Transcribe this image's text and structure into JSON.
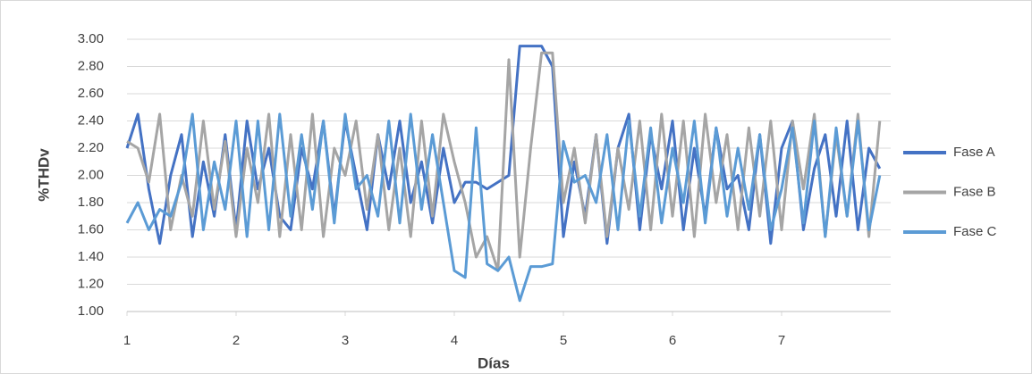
{
  "chart_data": {
    "type": "line",
    "x_label": "Días",
    "y_label": "%THDv",
    "x": [
      1.0,
      1.1,
      1.2,
      1.3,
      1.4,
      1.5,
      1.6,
      1.7,
      1.8,
      1.9,
      2.0,
      2.1,
      2.2,
      2.3,
      2.4,
      2.5,
      2.6,
      2.7,
      2.8,
      2.9,
      3.0,
      3.1,
      3.2,
      3.3,
      3.4,
      3.5,
      3.6,
      3.7,
      3.8,
      3.9,
      4.0,
      4.1,
      4.2,
      4.3,
      4.4,
      4.5,
      4.6,
      4.7,
      4.8,
      4.9,
      5.0,
      5.1,
      5.2,
      5.3,
      5.4,
      5.5,
      5.6,
      5.7,
      5.8,
      5.9,
      6.0,
      6.1,
      6.2,
      6.3,
      6.4,
      6.5,
      6.6,
      6.7,
      6.8,
      6.9,
      7.0,
      7.1,
      7.2,
      7.3,
      7.4,
      7.5,
      7.6,
      7.7,
      7.8,
      7.9
    ],
    "series": [
      {
        "name": "Fase A",
        "color": "#4472c4",
        "values": [
          2.2,
          2.45,
          1.9,
          1.5,
          2.0,
          2.3,
          1.55,
          2.1,
          1.7,
          2.3,
          1.6,
          2.4,
          1.9,
          2.2,
          1.7,
          1.6,
          2.2,
          1.9,
          2.4,
          1.7,
          2.4,
          2.0,
          1.6,
          2.3,
          1.9,
          2.4,
          1.8,
          2.1,
          1.65,
          2.2,
          1.8,
          1.95,
          1.95,
          1.9,
          1.95,
          2.0,
          2.95,
          2.95,
          2.95,
          2.8,
          1.55,
          2.1,
          1.7,
          2.3,
          1.5,
          2.2,
          2.45,
          1.6,
          2.3,
          1.9,
          2.4,
          1.6,
          2.2,
          1.7,
          2.35,
          1.9,
          2.0,
          1.6,
          2.3,
          1.5,
          2.2,
          2.4,
          1.6,
          2.05,
          2.3,
          1.7,
          2.4,
          1.6,
          2.2,
          2.05
        ]
      },
      {
        "name": "Fase B",
        "color": "#a5a5a5",
        "values": [
          2.25,
          2.2,
          1.95,
          2.45,
          1.6,
          2.0,
          1.7,
          2.4,
          1.75,
          2.25,
          1.55,
          2.2,
          1.8,
          2.45,
          1.55,
          2.3,
          1.6,
          2.45,
          1.55,
          2.2,
          2.0,
          2.4,
          1.75,
          2.3,
          1.6,
          2.2,
          1.55,
          2.4,
          1.7,
          2.45,
          2.1,
          1.8,
          1.4,
          1.55,
          1.3,
          2.85,
          1.4,
          2.2,
          2.9,
          2.9,
          1.8,
          2.2,
          1.65,
          2.3,
          1.55,
          2.2,
          1.75,
          2.4,
          1.6,
          2.45,
          1.7,
          2.4,
          1.55,
          2.45,
          1.8,
          2.3,
          1.6,
          2.35,
          1.7,
          2.4,
          1.6,
          2.4,
          1.9,
          2.45,
          1.55,
          2.3,
          1.7,
          2.45,
          1.55,
          2.4
        ]
      },
      {
        "name": "Fase C",
        "color": "#5b9bd5",
        "values": [
          1.65,
          1.8,
          1.6,
          1.75,
          1.7,
          1.95,
          2.45,
          1.6,
          2.1,
          1.75,
          2.4,
          1.55,
          2.4,
          1.6,
          2.45,
          1.7,
          2.3,
          1.75,
          2.4,
          1.65,
          2.45,
          1.9,
          2.0,
          1.7,
          2.4,
          1.65,
          2.45,
          1.75,
          2.3,
          1.8,
          1.3,
          1.25,
          2.35,
          1.35,
          1.3,
          1.4,
          1.08,
          1.33,
          1.33,
          1.35,
          2.25,
          1.95,
          2.0,
          1.8,
          2.3,
          1.6,
          2.4,
          1.7,
          2.35,
          1.65,
          2.2,
          1.8,
          2.4,
          1.65,
          2.35,
          1.7,
          2.2,
          1.75,
          2.3,
          1.6,
          1.9,
          2.35,
          1.65,
          2.4,
          1.55,
          2.35,
          1.7,
          2.4,
          1.6,
          2.0
        ]
      }
    ],
    "xlim": [
      1,
      8
    ],
    "xticks": [
      1,
      2,
      3,
      4,
      5,
      6,
      7
    ],
    "ylim": [
      1,
      3
    ],
    "yticks": [
      {
        "value": 1,
        "label": "1.00"
      },
      {
        "value": 1.2,
        "label": "1.20"
      },
      {
        "value": 1.4,
        "label": "1.40"
      },
      {
        "value": 1.6,
        "label": "1.60"
      },
      {
        "value": 1.8,
        "label": "1.80"
      },
      {
        "value": 2,
        "label": "2.00"
      },
      {
        "value": 2.2,
        "label": "2.20"
      },
      {
        "value": 2.4,
        "label": "2.40"
      },
      {
        "value": 2.6,
        "label": "2.60"
      },
      {
        "value": 2.8,
        "label": "2.80"
      },
      {
        "value": 3,
        "label": "3.00"
      }
    ],
    "grid": true,
    "legend": "right"
  }
}
